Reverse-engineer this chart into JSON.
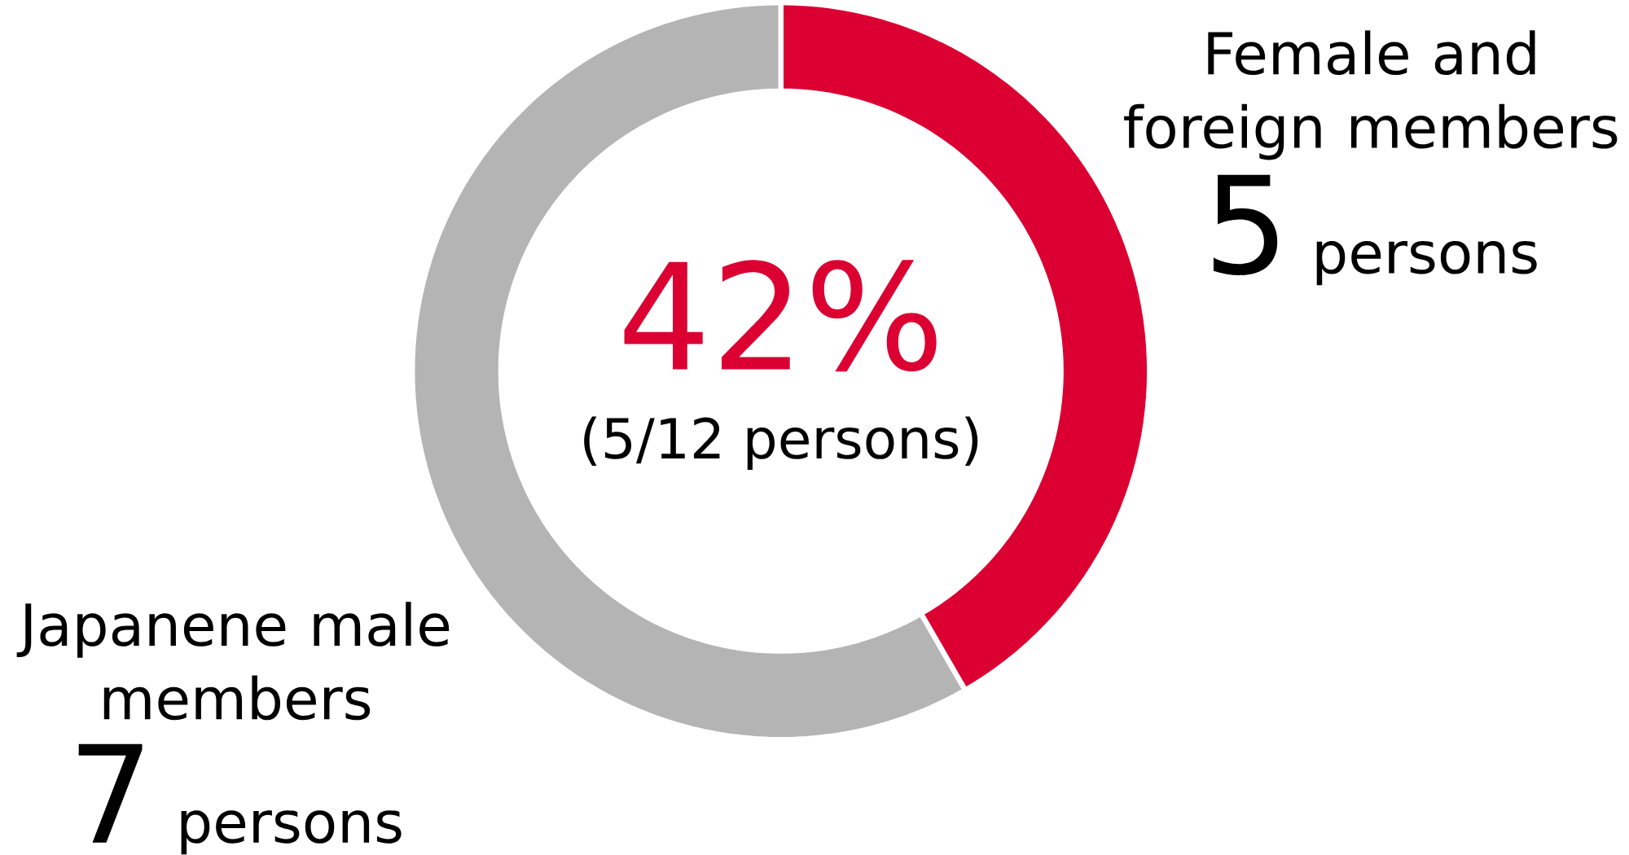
{
  "chart_data": {
    "type": "donut",
    "categories": [
      "Female and foreign members",
      "Japanene male members"
    ],
    "values": [
      5,
      7
    ],
    "colors": [
      "#dc0032",
      "#b4b4b4"
    ],
    "value_labels": [
      "5",
      "7"
    ],
    "annotations": [
      "42%",
      "(5/12 persons)",
      "persons",
      "persons"
    ]
  }
}
